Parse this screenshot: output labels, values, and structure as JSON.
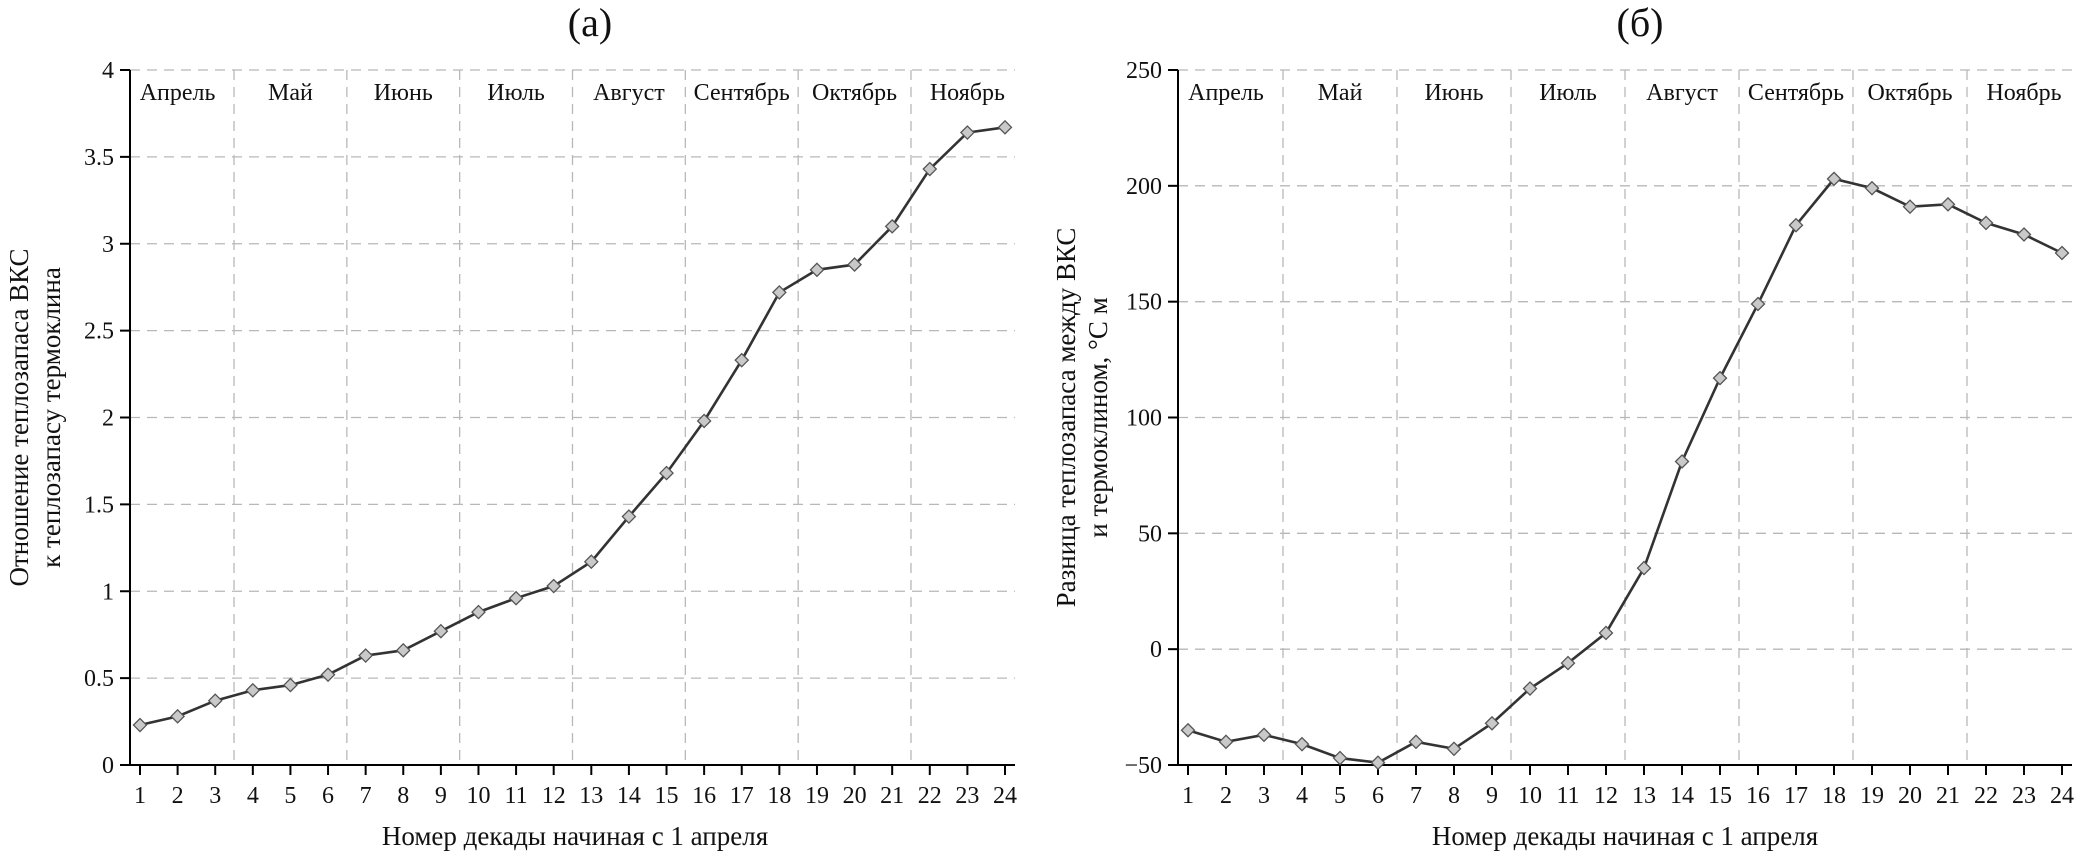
{
  "chart_data": [
    {
      "type": "line",
      "title": "(а)",
      "xlabel": "Номер декады начиная с 1 апреля",
      "ylabel": [
        "Отношение теплозапаса ВКС",
        "к теплозапасу термоклина"
      ],
      "x": [
        1,
        2,
        3,
        4,
        5,
        6,
        7,
        8,
        9,
        10,
        11,
        12,
        13,
        14,
        15,
        16,
        17,
        18,
        19,
        20,
        21,
        22,
        23,
        24
      ],
      "xlim": [
        1,
        24
      ],
      "ylim": [
        0,
        4
      ],
      "yticks": [
        0,
        0.5,
        1,
        1.5,
        2,
        2.5,
        3,
        3.5,
        4
      ],
      "ytick_labels": [
        "0",
        "0.5",
        "1",
        "1.5",
        "2",
        "2.5",
        "3",
        "3.5",
        "4"
      ],
      "grid": true,
      "months": [
        "Апрель",
        "Май",
        "Июнь",
        "Июль",
        "Август",
        "Сентябрь",
        "Октябрь",
        "Ноябрь"
      ],
      "series": [
        {
          "values": [
            0.23,
            0.28,
            0.37,
            0.43,
            0.46,
            0.52,
            0.63,
            0.66,
            0.77,
            0.88,
            0.96,
            1.03,
            1.17,
            1.43,
            1.68,
            1.98,
            2.33,
            2.72,
            2.85,
            2.88,
            3.1,
            3.43,
            3.64,
            3.67
          ]
        }
      ]
    },
    {
      "type": "line",
      "title": "(б)",
      "xlabel": "Номер декады начиная с 1 апреля",
      "ylabel": [
        "Разница теплозапаса между ВКС",
        "и термоклином, °С м"
      ],
      "x": [
        1,
        2,
        3,
        4,
        5,
        6,
        7,
        8,
        9,
        10,
        11,
        12,
        13,
        14,
        15,
        16,
        17,
        18,
        19,
        20,
        21,
        22,
        23,
        24
      ],
      "xlim": [
        1,
        24
      ],
      "ylim": [
        -50,
        250
      ],
      "yticks": [
        -50,
        0,
        50,
        100,
        150,
        200,
        250
      ],
      "ytick_labels": [
        "−50",
        "0",
        "50",
        "100",
        "150",
        "200",
        "250"
      ],
      "grid": true,
      "months": [
        "Апрель",
        "Май",
        "Июнь",
        "Июль",
        "Август",
        "Сентябрь",
        "Октябрь",
        "Ноябрь"
      ],
      "series": [
        {
          "values": [
            -35,
            -40,
            -37,
            -41,
            -47,
            -49,
            -40,
            -43,
            -32,
            -17,
            -6,
            7,
            35,
            81,
            117,
            149,
            183,
            203,
            199,
            191,
            192,
            184,
            179,
            171
          ]
        }
      ]
    }
  ]
}
